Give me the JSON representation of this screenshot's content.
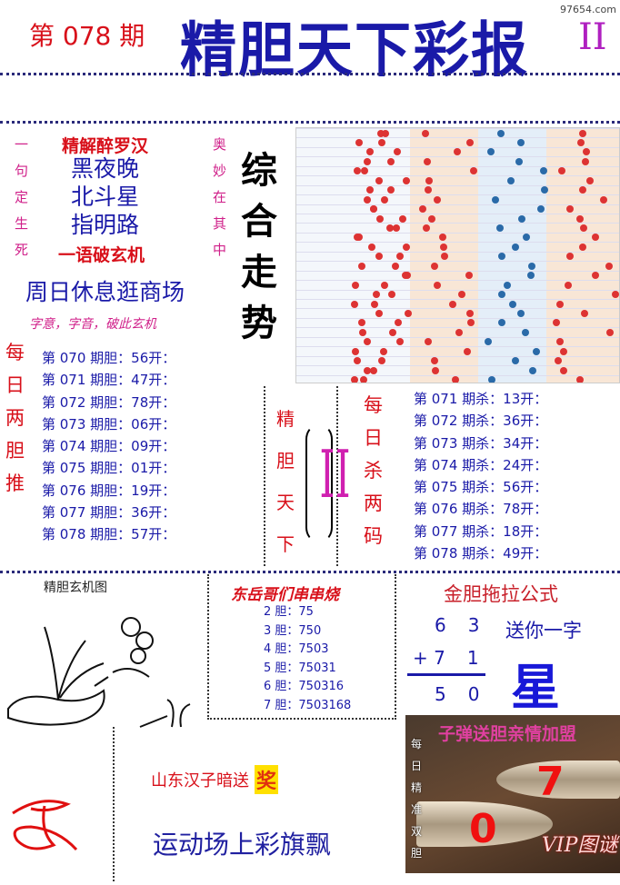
{
  "header": {
    "issue": "第 078 期",
    "title": "精胆天下彩报",
    "volume": "II",
    "site": "97654.com"
  },
  "intro": {
    "left_vertical": [
      "一",
      "句",
      "定",
      "生",
      "死"
    ],
    "right_vertical": [
      "奥",
      "妙",
      "在",
      "其",
      "中"
    ],
    "heading": "精解醉罗汉",
    "lines": [
      "黑夜晚",
      "北斗星",
      "指明路"
    ],
    "footer": "一语破玄机",
    "big_line": "周日休息逛商场",
    "hint": "字意，字音，破此玄机"
  },
  "trend": {
    "label": [
      "综",
      "合",
      "走",
      "势"
    ]
  },
  "daily_two": {
    "vertical": [
      "每",
      "日",
      "两",
      "胆",
      "推"
    ],
    "items": [
      "第 070 期胆：56开：",
      "第 071 期胆：47开：",
      "第 072 期胆：78开：",
      "第 073 期胆：06开：",
      "第 074 期胆：09开：",
      "第 075 期胆：01开：",
      "第 076 期胆：19开：",
      "第 077 期胆：36开：",
      "第 078 期胆：57开："
    ]
  },
  "center_badge": {
    "vertical": [
      "精",
      "胆",
      "天",
      "下"
    ],
    "mark": "II"
  },
  "daily_kill": {
    "vertical": [
      "每",
      "日",
      "杀",
      "两",
      "码"
    ],
    "items": [
      "第 071 期杀：13开：",
      "第 072 期杀：36开：",
      "第 073 期杀：34开：",
      "第 074 期杀：24开：",
      "第 075 期杀：56开：",
      "第 076 期杀：78开：",
      "第 077 期杀：18开：",
      "第 078 期杀：49开："
    ]
  },
  "mystery_pic": {
    "title": "精胆玄机图"
  },
  "skewers": {
    "title": "东岳哥们串串烧",
    "items": [
      "2 胆：75",
      "3 胆：750",
      "4 胆：7503",
      "5 胆：75031",
      "6 胆：750316",
      "7 胆：7503168"
    ]
  },
  "formula": {
    "title": "金胆拖拉公式",
    "row1": [
      "6",
      "3"
    ],
    "row2": [
      "+ 7",
      "1"
    ],
    "result": [
      "5",
      "0"
    ],
    "gift_label": "送你一字",
    "gift_char": "星"
  },
  "bottom": {
    "sender": "山东汉子暗送",
    "prize": "奖",
    "riddle": "运动场上彩旗飘"
  },
  "bullet_ad": {
    "title": "子弹送胆亲情加盟",
    "vertical": [
      "每",
      "日",
      "精",
      "准",
      "双",
      "胆"
    ],
    "num1": "7",
    "num2": "0",
    "tag": "VIP图谜"
  }
}
